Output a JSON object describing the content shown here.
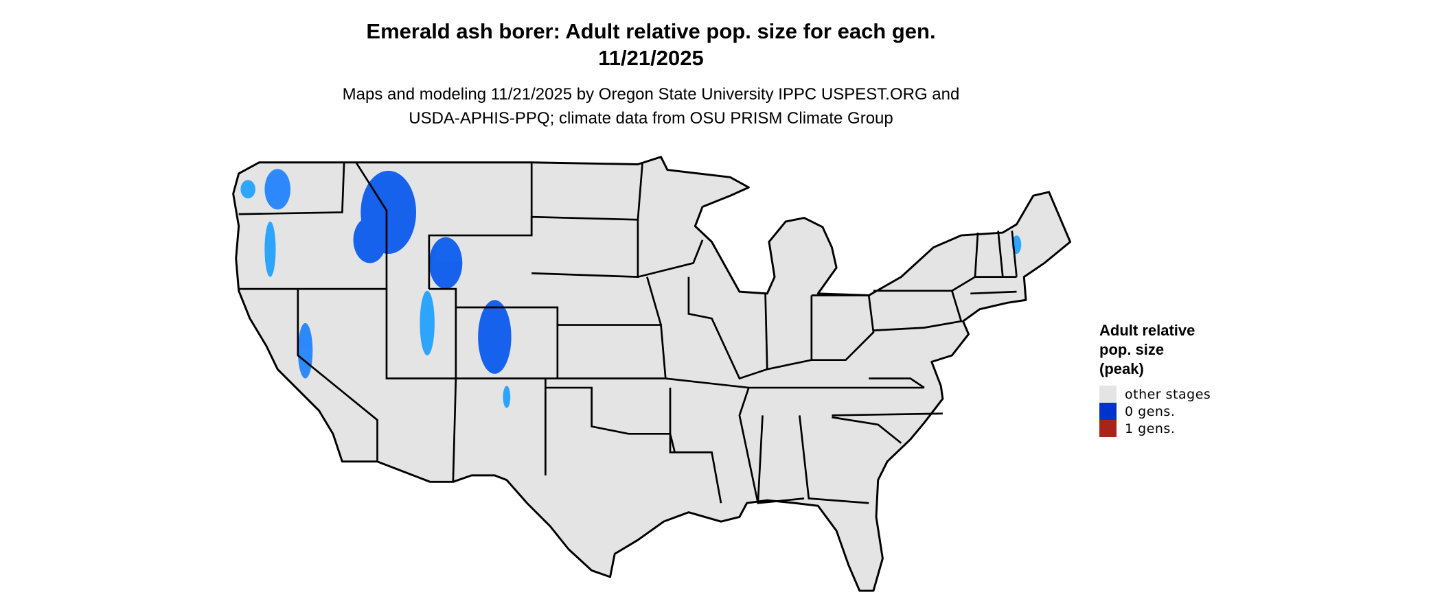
{
  "title_line1": "Emerald ash borer: Adult relative pop. size for each gen.",
  "title_line2": "11/21/2025",
  "subtitle_line1": "Maps and modeling 11/21/2025 by Oregon State University IPPC USPEST.ORG and",
  "subtitle_line2": "USDA-APHIS-PPQ; climate data from OSU PRISM Climate Group",
  "legend": {
    "title_line1": "Adult relative",
    "title_line2": "pop. size",
    "title_line3": "(peak)",
    "items": [
      {
        "label": "other stages",
        "color": "#e4e4e4"
      },
      {
        "label": "0 gens.",
        "color": "#0033cc"
      },
      {
        "label": "1 gens.",
        "color": "#a82418"
      }
    ]
  },
  "map": {
    "region": "Contiguous United States",
    "land_color": "#e4e4e4",
    "border_color": "#000000",
    "zero_gen_color": "#0055ee",
    "zero_gen_light_color": "#1a9fff"
  }
}
